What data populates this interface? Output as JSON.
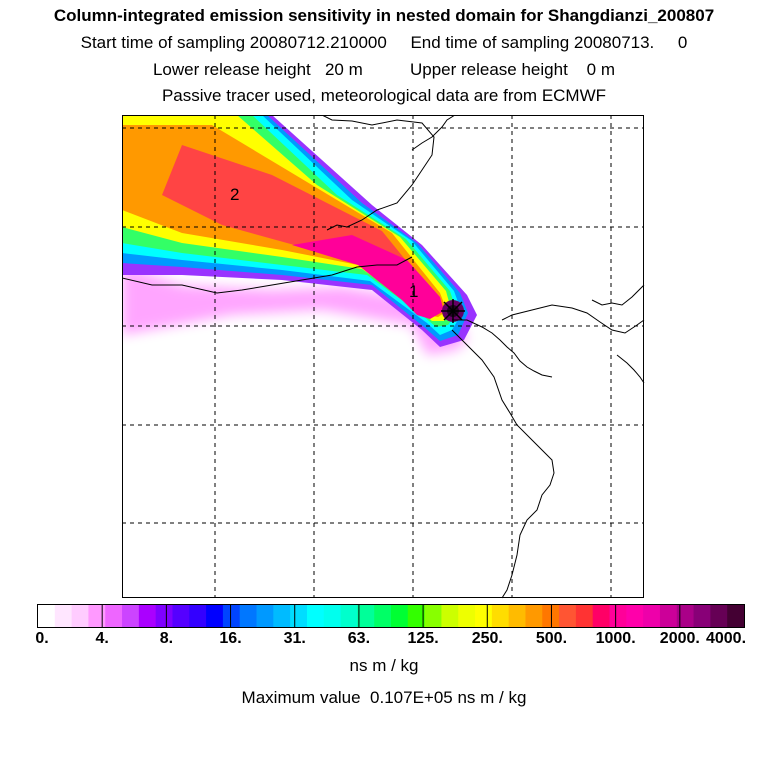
{
  "header": {
    "title": "Column-integrated emission sensitivity in nested domain for Shangdianzi_200807",
    "sampling": "Start time of sampling 20080712.210000     End time of sampling 20080713.     0",
    "release": "Lower release height   20 m          Upper release height    0 m",
    "note": "Passive tracer used, meteorological data are from ECMWF"
  },
  "map": {
    "labels": [
      "1",
      "2"
    ],
    "grid_style": "dashed",
    "plume_colors": [
      "#ff00ff",
      "#9900ff",
      "#00ccff",
      "#00ffcc",
      "#00ff66",
      "#ccff00",
      "#ffff00",
      "#ff9900",
      "#ff4444",
      "#ff0099",
      "#990066",
      "#330033"
    ]
  },
  "colorbar": {
    "ticks": [
      "0.",
      "4.",
      "8.",
      "16.",
      "31.",
      "63.",
      "125.",
      "250.",
      "500.",
      "1000.",
      "2000.",
      "4000."
    ],
    "colors": [
      "#ffffff",
      "#ffe6ff",
      "#ffccff",
      "#ff99ff",
      "#ee66ff",
      "#cc44ff",
      "#aa00ff",
      "#7f00ff",
      "#5500ff",
      "#3300ff",
      "#0000ff",
      "#0044ff",
      "#0077ff",
      "#0099ff",
      "#00bbff",
      "#00ddff",
      "#00ffff",
      "#00ffee",
      "#00ffcc",
      "#00ff99",
      "#00ff66",
      "#00ff33",
      "#33ff00",
      "#88ff00",
      "#ccff00",
      "#eeff00",
      "#ffff00",
      "#ffdd00",
      "#ffbb00",
      "#ff9900",
      "#ff7700",
      "#ff5533",
      "#ff3333",
      "#ff0066",
      "#ff0099",
      "#ff00aa",
      "#ee00aa",
      "#cc0099",
      "#aa0088",
      "#880077",
      "#660055",
      "#440033"
    ],
    "units": "ns m / kg"
  },
  "footer": {
    "max_value": "Maximum value  0.107E+05 ns m / kg"
  }
}
